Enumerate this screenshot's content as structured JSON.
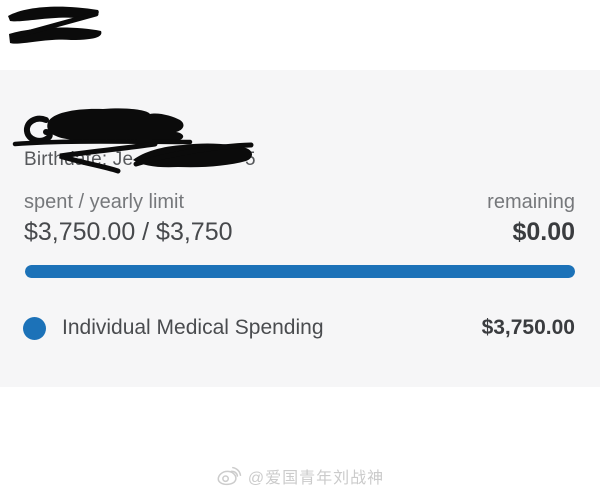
{
  "colors": {
    "accent": "#1c72b8",
    "card_bg": "#f6f6f7"
  },
  "card": {
    "birthdate_prefix": "Birthdate: Je",
    "birthdate_suffix": "5",
    "labels": {
      "spent": "spent / yearly limit",
      "remaining": "remaining"
    },
    "values": {
      "spent": "$3,750.00 / $3,750",
      "remaining": "$0.00"
    },
    "progress": {
      "percent": 100
    },
    "legend": [
      {
        "label": "Individual Medical Spending",
        "value": "$3,750.00",
        "color": "#1c72b8"
      }
    ]
  },
  "watermark": {
    "handle": "@爱国青年刘战神",
    "icon": "weibo-icon"
  }
}
